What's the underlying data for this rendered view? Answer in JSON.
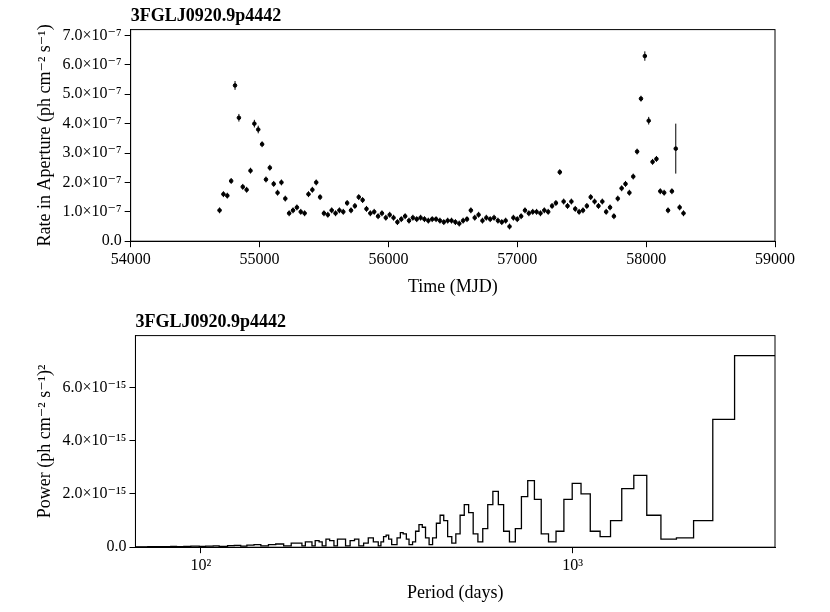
{
  "chart_data": [
    {
      "type": "scatter",
      "title": "3FGLJ0920.9p4442",
      "x_label": "Time (MJD)",
      "y_label": "Rate in Aperture (ph cm⁻² s⁻¹)",
      "x": [
        54690,
        54720,
        54750,
        54780,
        54810,
        54840,
        54870,
        54900,
        54930,
        54960,
        54990,
        55020,
        55050,
        55080,
        55110,
        55140,
        55170,
        55200,
        55230,
        55260,
        55290,
        55320,
        55350,
        55380,
        55410,
        55440,
        55470,
        55500,
        55530,
        55560,
        55590,
        55620,
        55650,
        55680,
        55710,
        55740,
        55770,
        55800,
        55830,
        55860,
        55890,
        55920,
        55950,
        55980,
        56010,
        56040,
        56070,
        56100,
        56130,
        56160,
        56190,
        56220,
        56250,
        56280,
        56310,
        56340,
        56370,
        56400,
        56430,
        56460,
        56490,
        56520,
        56550,
        56580,
        56610,
        56640,
        56670,
        56700,
        56730,
        56760,
        56790,
        56820,
        56850,
        56880,
        56910,
        56940,
        56970,
        57000,
        57030,
        57060,
        57090,
        57120,
        57150,
        57180,
        57210,
        57240,
        57270,
        57300,
        57330,
        57360,
        57390,
        57420,
        57450,
        57480,
        57510,
        57540,
        57570,
        57600,
        57630,
        57660,
        57690,
        57720,
        57750,
        57780,
        57810,
        57840,
        57870,
        57900,
        57930,
        57960,
        57990,
        58020,
        58050,
        58080,
        58110,
        58140,
        58170,
        58200,
        58230,
        58260,
        58290
      ],
      "values": [
        1.05e-07,
        1.6e-07,
        1.55e-07,
        2.05e-07,
        5.3e-07,
        4.2e-07,
        1.85e-07,
        1.75e-07,
        2.4e-07,
        4e-07,
        3.8e-07,
        3.3e-07,
        2.1e-07,
        2.5e-07,
        1.95e-07,
        1.65e-07,
        2e-07,
        1.45e-07,
        9.5e-08,
        1.05e-07,
        1.15e-07,
        1e-07,
        9.5e-08,
        1.6e-07,
        1.75e-07,
        2e-07,
        1.5e-07,
        9.5e-08,
        9e-08,
        1.05e-07,
        9.5e-08,
        1.05e-07,
        1e-07,
        1.3e-07,
        1.05e-07,
        1.2e-07,
        1.5e-07,
        1.4e-07,
        1.1e-07,
        9.5e-08,
        1e-07,
        8.5e-08,
        9.5e-08,
        8e-08,
        9e-08,
        8e-08,
        6.5e-08,
        7.5e-08,
        8.5e-08,
        7e-08,
        8e-08,
        7.5e-08,
        8e-08,
        7.5e-08,
        7e-08,
        7.5e-08,
        7.5e-08,
        7e-08,
        6.5e-08,
        7e-08,
        7e-08,
        6.5e-08,
        6e-08,
        7e-08,
        7.5e-08,
        1.05e-07,
        8e-08,
        9e-08,
        7e-08,
        8e-08,
        7.5e-08,
        8e-08,
        7e-08,
        6.5e-08,
        7e-08,
        5e-08,
        8e-08,
        7.5e-08,
        8.5e-08,
        1.05e-07,
        9.5e-08,
        1e-07,
        1e-07,
        9.5e-08,
        1.05e-07,
        1e-07,
        1.2e-07,
        1.3e-07,
        2.35e-07,
        1.35e-07,
        1.2e-07,
        1.35e-07,
        1.1e-07,
        1e-07,
        1.05e-07,
        1.2e-07,
        1.5e-07,
        1.35e-07,
        1.2e-07,
        1.35e-07,
        1e-07,
        1.15e-07,
        8.5e-08,
        1.45e-07,
        1.8e-07,
        1.95e-07,
        1.65e-07,
        2.2e-07,
        3.05e-07,
        4.85e-07,
        6.3e-07,
        4.1e-07,
        2.7e-07,
        2.8e-07,
        1.7e-07,
        1.65e-07,
        1.05e-07,
        1.7e-07,
        3.15e-07,
        1.15e-07,
        9.5e-08
      ],
      "errors": [
        1e-08,
        1e-08,
        1e-08,
        1e-08,
        1.5e-08,
        1.3e-08,
        1e-08,
        1e-08,
        1e-08,
        1.3e-08,
        1.3e-08,
        1e-08,
        1e-08,
        1e-08,
        1e-08,
        1e-08,
        1e-08,
        1e-08,
        1e-08,
        1e-08,
        1e-08,
        1e-08,
        1e-08,
        1e-08,
        1e-08,
        1e-08,
        1e-08,
        1e-08,
        1e-08,
        1e-08,
        1e-08,
        1e-08,
        1e-08,
        1e-08,
        1e-08,
        1e-08,
        1e-08,
        1e-08,
        1e-08,
        1e-08,
        1e-08,
        1e-08,
        1e-08,
        1e-08,
        1e-08,
        1e-08,
        1e-08,
        1e-08,
        1e-08,
        1e-08,
        1e-08,
        1e-08,
        1e-08,
        1e-08,
        1e-08,
        1e-08,
        1e-08,
        1e-08,
        1e-08,
        1e-08,
        1e-08,
        1e-08,
        1e-08,
        1e-08,
        1e-08,
        1e-08,
        1e-08,
        1e-08,
        1e-08,
        1e-08,
        1e-08,
        1e-08,
        1e-08,
        1e-08,
        1e-08,
        1e-08,
        1e-08,
        1e-08,
        1e-08,
        1e-08,
        1e-08,
        1e-08,
        1e-08,
        1e-08,
        1e-08,
        1e-08,
        1e-08,
        1e-08,
        1e-08,
        1e-08,
        1e-08,
        1e-08,
        1e-08,
        1e-08,
        1e-08,
        1e-08,
        1e-08,
        1e-08,
        1e-08,
        1e-08,
        1e-08,
        1e-08,
        1e-08,
        1e-08,
        1e-08,
        1e-08,
        1e-08,
        1e-08,
        1e-08,
        1e-08,
        1.6e-08,
        1.3e-08,
        1e-08,
        1e-08,
        1e-08,
        1e-08,
        1e-08,
        1e-08,
        8.5e-08,
        1e-08,
        1e-08
      ],
      "color": "#000000",
      "marker": "circle",
      "xlim": [
        54000,
        59000
      ],
      "xticks": [
        54000,
        55000,
        56000,
        57000,
        58000,
        59000
      ],
      "ylim": [
        0,
        7.2e-07
      ],
      "yticks": [
        {
          "value": 0,
          "label": "0.0"
        },
        {
          "value": 1e-07,
          "label": "1.0×10⁻⁷"
        },
        {
          "value": 2e-07,
          "label": "2.0×10⁻⁷"
        },
        {
          "value": 3e-07,
          "label": "3.0×10⁻⁷"
        },
        {
          "value": 4e-07,
          "label": "4.0×10⁻⁷"
        },
        {
          "value": 5e-07,
          "label": "5.0×10⁻⁷"
        },
        {
          "value": 6e-07,
          "label": "6.0×10⁻⁷"
        },
        {
          "value": 7e-07,
          "label": "7.0×10⁻⁷"
        }
      ],
      "grid": false
    },
    {
      "type": "histogram",
      "title": "3FGLJ0920.9p4442",
      "x_label": "Period (days)",
      "y_label": "Power (ph cm⁻² s⁻¹)²",
      "bins": [
        3500,
        2725,
        2381,
        2114,
        1901,
        1727,
        1582,
        1460,
        1355,
        1264,
        1185,
        1115,
        1053,
        997,
        947,
        902,
        861,
        823,
        789,
        757,
        728,
        701,
        676,
        652,
        631,
        610,
        591,
        573,
        556,
        540,
        525,
        511,
        498,
        485,
        473,
        461,
        450,
        440,
        430,
        420,
        411,
        402,
        394,
        386,
        378,
        371,
        363,
        357,
        350,
        344,
        337,
        331,
        326,
        320,
        315,
        310,
        305,
        300,
        291,
        282,
        274,
        266,
        259,
        252,
        245,
        239,
        233,
        228,
        222,
        217,
        212,
        208,
        203,
        199,
        195,
        191,
        187,
        183,
        175,
        167,
        159,
        152,
        145,
        139,
        133,
        128,
        123,
        118,
        112,
        108,
        103,
        99,
        94,
        90,
        86,
        83,
        79,
        75,
        72,
        69,
        66.7
      ],
      "values": [
        7.2e-15,
        4.8e-15,
        1e-15,
        3.5e-16,
        3e-16,
        1.2e-15,
        2.7e-15,
        2.2e-15,
        1e-15,
        4e-16,
        6e-16,
        2e-15,
        2.4e-15,
        1.8e-15,
        6e-16,
        2e-16,
        5e-16,
        1.8e-15,
        2.5e-15,
        1.9e-15,
        7e-16,
        2e-16,
        6e-16,
        1.6e-15,
        2.1e-15,
        1.6e-15,
        7e-16,
        2e-16,
        5e-16,
        1.3e-15,
        1.6e-15,
        1.2e-15,
        5e-16,
        1.5e-16,
        4e-16,
        1e-15,
        1.2e-15,
        9e-16,
        3.5e-16,
        1e-16,
        3.5e-16,
        7.5e-16,
        8.5e-16,
        6e-16,
        2e-16,
        1e-16,
        3e-16,
        5e-16,
        5.5e-16,
        3.5e-16,
        1e-16,
        1e-16,
        3e-16,
        4.5e-16,
        4e-16,
        2e-16,
        5e-17,
        2e-16,
        3.5e-16,
        1.5e-16,
        5e-17,
        3e-16,
        2.5e-16,
        5e-17,
        3e-16,
        3e-16,
        5e-17,
        2.5e-16,
        3e-16,
        5e-17,
        2e-16,
        2.5e-16,
        5e-17,
        2e-16,
        2e-16,
        5e-17,
        1.5e-16,
        1.5e-16,
        5e-17,
        1.2e-16,
        1e-16,
        5e-17,
        1e-16,
        8e-17,
        4e-17,
        7e-17,
        6e-17,
        3e-17,
        5e-17,
        4e-17,
        3e-17,
        4e-17,
        3e-17,
        2e-17,
        3e-17,
        2e-17,
        2e-17,
        2e-17,
        1e-17,
        1e-17
      ],
      "color": "#000000",
      "log": "x",
      "xlim": [
        66.7,
        3500
      ],
      "xticks": [
        {
          "value": 100,
          "label": "10²"
        },
        {
          "value": 1000,
          "label": "10³"
        }
      ],
      "ylim": [
        0,
        7.95e-15
      ],
      "yticks": [
        {
          "value": 0,
          "label": "0.0"
        },
        {
          "value": 2e-15,
          "label": "2.0×10⁻¹⁵"
        },
        {
          "value": 4e-15,
          "label": "4.0×10⁻¹⁵"
        },
        {
          "value": 6e-15,
          "label": "6.0×10⁻¹⁵"
        }
      ],
      "grid": false
    }
  ]
}
